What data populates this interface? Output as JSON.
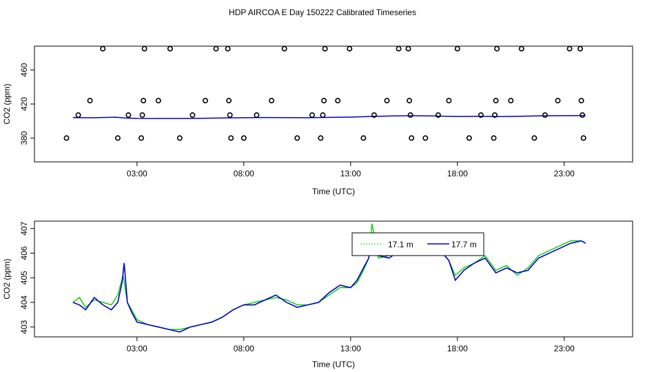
{
  "title": "HDP AIRCOA E  Day 150222  Calibrated Timeseries",
  "colors": {
    "primary": "#0000cc",
    "secondary": "#00cc00",
    "points": "#000000"
  },
  "chart_data": [
    {
      "type": "scatter",
      "title": "",
      "xlabel": "Time (UTC)",
      "ylabel": "CO2 (ppm)",
      "xlim": [
        -1.8,
        26.2
      ],
      "ylim": [
        352,
        488
      ],
      "xticks": [
        3,
        8,
        13,
        18,
        23
      ],
      "xtick_labels": [
        "03:00",
        "08:00",
        "13:00",
        "18:00",
        "23:00"
      ],
      "yticks": [
        380,
        420,
        460
      ],
      "ytick_labels": [
        "380",
        "420",
        "460"
      ],
      "grid": false,
      "points": [
        {
          "x": -0.3,
          "y": 380
        },
        {
          "x": 0.25,
          "y": 407
        },
        {
          "x": 0.8,
          "y": 424
        },
        {
          "x": 1.4,
          "y": 485
        },
        {
          "x": 2.1,
          "y": 380
        },
        {
          "x": 2.6,
          "y": 407
        },
        {
          "x": 3.2,
          "y": 380
        },
        {
          "x": 3.25,
          "y": 407
        },
        {
          "x": 3.3,
          "y": 424
        },
        {
          "x": 3.35,
          "y": 485
        },
        {
          "x": 4.0,
          "y": 424
        },
        {
          "x": 4.55,
          "y": 485
        },
        {
          "x": 5.0,
          "y": 380
        },
        {
          "x": 5.6,
          "y": 407
        },
        {
          "x": 6.2,
          "y": 424
        },
        {
          "x": 6.7,
          "y": 485
        },
        {
          "x": 7.25,
          "y": 485
        },
        {
          "x": 7.3,
          "y": 424
        },
        {
          "x": 7.35,
          "y": 407
        },
        {
          "x": 7.4,
          "y": 380
        },
        {
          "x": 8.0,
          "y": 380
        },
        {
          "x": 8.6,
          "y": 407
        },
        {
          "x": 9.3,
          "y": 424
        },
        {
          "x": 9.9,
          "y": 485
        },
        {
          "x": 10.5,
          "y": 380
        },
        {
          "x": 11.2,
          "y": 407
        },
        {
          "x": 11.7,
          "y": 407
        },
        {
          "x": 11.6,
          "y": 380
        },
        {
          "x": 11.75,
          "y": 424
        },
        {
          "x": 11.8,
          "y": 485
        },
        {
          "x": 12.4,
          "y": 424
        },
        {
          "x": 12.95,
          "y": 485
        },
        {
          "x": 13.6,
          "y": 380
        },
        {
          "x": 14.1,
          "y": 407
        },
        {
          "x": 14.7,
          "y": 424
        },
        {
          "x": 15.25,
          "y": 485
        },
        {
          "x": 15.7,
          "y": 485
        },
        {
          "x": 15.75,
          "y": 424
        },
        {
          "x": 15.8,
          "y": 407
        },
        {
          "x": 15.85,
          "y": 380
        },
        {
          "x": 16.5,
          "y": 380
        },
        {
          "x": 17.1,
          "y": 407
        },
        {
          "x": 17.6,
          "y": 424
        },
        {
          "x": 18.0,
          "y": 485
        },
        {
          "x": 18.55,
          "y": 380
        },
        {
          "x": 19.1,
          "y": 407
        },
        {
          "x": 19.7,
          "y": 380
        },
        {
          "x": 19.75,
          "y": 407
        },
        {
          "x": 19.8,
          "y": 424
        },
        {
          "x": 19.85,
          "y": 485
        },
        {
          "x": 20.5,
          "y": 424
        },
        {
          "x": 21.0,
          "y": 485
        },
        {
          "x": 21.6,
          "y": 380
        },
        {
          "x": 22.1,
          "y": 407
        },
        {
          "x": 22.7,
          "y": 424
        },
        {
          "x": 23.25,
          "y": 485
        },
        {
          "x": 23.75,
          "y": 485
        },
        {
          "x": 23.8,
          "y": 424
        },
        {
          "x": 23.85,
          "y": 407
        },
        {
          "x": 23.9,
          "y": 380
        }
      ],
      "series": [
        {
          "x": [
            0.0,
            1.0,
            2.0,
            2.5,
            3.0,
            4.0,
            5.0,
            6.0,
            7.0,
            8.0,
            9.0,
            10.0,
            11.0,
            12.0,
            13.0,
            14.0,
            15.0,
            16.0,
            17.0,
            18.0,
            19.0,
            20.0,
            21.0,
            22.0,
            23.0,
            24.0
          ],
          "y": [
            404.0,
            403.9,
            404.5,
            403.5,
            403.1,
            403.0,
            403.0,
            403.2,
            403.6,
            403.9,
            404.1,
            404.0,
            403.9,
            404.3,
            404.6,
            405.4,
            406.0,
            406.2,
            405.9,
            405.3,
            405.5,
            405.2,
            405.6,
            406.1,
            406.3,
            406.4
          ]
        }
      ]
    },
    {
      "type": "line",
      "title": "",
      "xlabel": "Time (UTC)",
      "ylabel": "CO2 (ppm)",
      "xlim": [
        -1.8,
        26.2
      ],
      "ylim": [
        402.6,
        407.3
      ],
      "xticks": [
        3,
        8,
        13,
        18,
        23
      ],
      "xtick_labels": [
        "03:00",
        "08:00",
        "13:00",
        "18:00",
        "23:00"
      ],
      "yticks": [
        403,
        404,
        405,
        406,
        407
      ],
      "ytick_labels": [
        "403",
        "404",
        "405",
        "406",
        "407"
      ],
      "grid": false,
      "legend_position": "top-center",
      "series": [
        {
          "name": "17.1 m",
          "color": "#00cc00",
          "x": [
            0.0,
            0.3,
            0.6,
            1.0,
            1.4,
            1.8,
            2.1,
            2.35,
            2.55,
            2.75,
            3.0,
            3.5,
            4.0,
            4.5,
            5.0,
            5.5,
            6.0,
            6.5,
            7.0,
            7.5,
            8.0,
            8.5,
            9.0,
            9.5,
            10.0,
            10.5,
            11.0,
            11.5,
            12.0,
            12.5,
            13.0,
            13.3,
            13.6,
            13.85,
            14.0,
            14.3,
            14.8,
            15.3,
            15.8,
            16.3,
            16.8,
            17.3,
            17.6,
            17.9,
            18.3,
            18.8,
            19.3,
            19.8,
            20.3,
            20.8,
            21.3,
            21.8,
            22.3,
            22.8,
            23.3,
            23.8,
            24.0
          ],
          "y": [
            404.0,
            404.2,
            403.8,
            404.1,
            404.0,
            403.9,
            404.3,
            405.1,
            404.0,
            403.7,
            403.3,
            403.1,
            403.0,
            402.9,
            402.9,
            403.0,
            403.1,
            403.2,
            403.4,
            403.7,
            403.9,
            404.0,
            404.1,
            404.2,
            404.1,
            403.9,
            403.9,
            404.0,
            404.3,
            404.6,
            404.6,
            404.8,
            405.3,
            405.8,
            407.2,
            405.8,
            405.9,
            406.1,
            406.3,
            406.2,
            406.1,
            406.0,
            405.7,
            405.1,
            405.4,
            405.6,
            405.9,
            405.3,
            405.5,
            405.1,
            405.4,
            405.9,
            406.1,
            406.3,
            406.5,
            406.5,
            406.4
          ]
        },
        {
          "name": "17.7 m",
          "color": "#0000cc",
          "x": [
            0.0,
            0.3,
            0.6,
            1.0,
            1.4,
            1.8,
            2.1,
            2.3,
            2.4,
            2.55,
            2.75,
            3.0,
            3.5,
            4.0,
            4.5,
            5.0,
            5.5,
            6.0,
            6.5,
            7.0,
            7.5,
            8.0,
            8.5,
            9.0,
            9.5,
            10.0,
            10.5,
            11.0,
            11.5,
            12.0,
            12.5,
            13.0,
            13.3,
            13.6,
            13.85,
            14.0,
            14.3,
            14.8,
            15.3,
            15.8,
            16.3,
            16.8,
            17.3,
            17.6,
            17.9,
            18.3,
            18.8,
            19.3,
            19.8,
            20.3,
            20.8,
            21.3,
            21.8,
            22.3,
            22.8,
            23.3,
            23.8,
            24.0
          ],
          "y": [
            404.0,
            403.9,
            403.7,
            404.2,
            403.9,
            403.7,
            404.0,
            404.8,
            405.6,
            404.0,
            403.6,
            403.2,
            403.1,
            403.0,
            402.9,
            402.8,
            403.0,
            403.1,
            403.2,
            403.4,
            403.7,
            403.9,
            403.9,
            404.1,
            404.3,
            404.0,
            403.8,
            403.9,
            404.0,
            404.4,
            404.7,
            404.6,
            404.9,
            405.4,
            405.8,
            406.8,
            405.9,
            405.8,
            406.1,
            406.4,
            406.3,
            406.0,
            406.0,
            405.7,
            404.9,
            405.3,
            405.6,
            405.8,
            405.2,
            405.4,
            405.2,
            405.3,
            405.8,
            406.0,
            406.2,
            406.4,
            406.5,
            406.4
          ]
        }
      ]
    }
  ]
}
